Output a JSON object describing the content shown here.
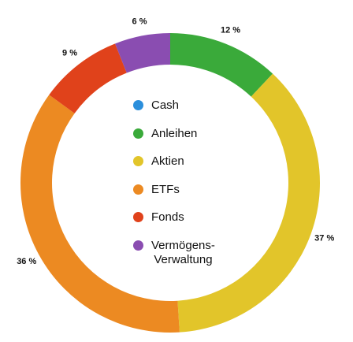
{
  "chart_data": {
    "type": "donut",
    "categories": [
      "Cash",
      "Anleihen",
      "Aktien",
      "ETFs",
      "Fonds",
      "Vermögens-\nVerwaltung"
    ],
    "values": [
      0,
      12,
      37,
      36,
      9,
      6
    ],
    "value_labels": [
      null,
      "12 %",
      "37 %",
      "36 %",
      "9 %",
      "6 %"
    ],
    "colors": [
      "#2b8fdc",
      "#3aaa3a",
      "#e2c52a",
      "#ec8a22",
      "#e0421b",
      "#8a4db1"
    ]
  }
}
